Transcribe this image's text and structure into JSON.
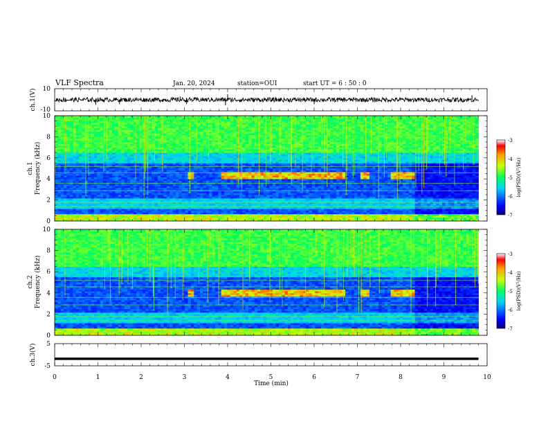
{
  "header": {
    "title": "VLF Spectra",
    "date": "Jan. 20, 2024",
    "station": "station=OUI",
    "start": "start UT =  6 : 50 : 0"
  },
  "chart_data": [
    {
      "type": "line",
      "panel": "waveform-ch1",
      "ylabel": "ch.1(V)",
      "ylim": [
        -10,
        10
      ],
      "yticks": [
        "10",
        "-10"
      ],
      "xlim": [
        0,
        10
      ],
      "data_end_min": 9.8,
      "baseline": 0,
      "typical_amplitude": 2,
      "spikes": [
        {
          "t": 0.95,
          "v": -4.5
        },
        {
          "t": 1.5,
          "v": -4
        },
        {
          "t": 2.9,
          "v": 3
        },
        {
          "t": 3.05,
          "v": -4
        },
        {
          "t": 3.95,
          "v": -5
        },
        {
          "t": 4.0,
          "v": 5
        },
        {
          "t": 6.0,
          "v": -4
        },
        {
          "t": 9.65,
          "v": 4
        }
      ]
    },
    {
      "type": "heatmap",
      "panel": "spectrogram-ch1",
      "ylabel": "ch.1\nFrequency  (kHz)",
      "ylim": [
        0,
        10
      ],
      "yticks": [
        "0",
        "2",
        "4",
        "6",
        "8",
        "10"
      ],
      "xlim": [
        0,
        10
      ],
      "data_end_min": 9.8,
      "colorbar": {
        "label": "log(PSD)(V²/Hz)",
        "range": [
          -7,
          -3
        ],
        "ticks": [
          "-3",
          "-4",
          "-5",
          "-6",
          "-7"
        ]
      },
      "emission_bands": [
        {
          "t_start": 3.85,
          "t_end": 6.7,
          "f_khz": 4.3
        },
        {
          "t_start": 3.1,
          "t_end": 3.25,
          "f_khz": 4.3
        },
        {
          "t_start": 7.05,
          "t_end": 7.3,
          "f_khz": 4.3
        },
        {
          "t_start": 7.8,
          "t_end": 8.3,
          "f_khz": 4.3
        }
      ]
    },
    {
      "type": "heatmap",
      "panel": "spectrogram-ch2",
      "ylabel": "ch.2\nFrequency  (kHz)",
      "ylim": [
        0,
        10
      ],
      "yticks": [
        "0",
        "2",
        "4",
        "6",
        "8",
        "10"
      ],
      "xlim": [
        0,
        10
      ],
      "data_end_min": 9.8,
      "colorbar": {
        "label": "log(PSD)(V²/Hz)",
        "range": [
          -7,
          -3
        ],
        "ticks": [
          "-3",
          "-4",
          "-5",
          "-6",
          "-7"
        ]
      },
      "emission_bands": [
        {
          "t_start": 3.85,
          "t_end": 6.7,
          "f_khz": 4.0
        },
        {
          "t_start": 3.1,
          "t_end": 3.25,
          "f_khz": 4.0
        },
        {
          "t_start": 7.05,
          "t_end": 7.3,
          "f_khz": 4.0
        },
        {
          "t_start": 7.8,
          "t_end": 8.3,
          "f_khz": 4.0
        }
      ]
    },
    {
      "type": "line",
      "panel": "waveform-ch3",
      "ylabel": "ch.3(V)",
      "ylim": [
        -5,
        5
      ],
      "yticks": [
        "5",
        "-5"
      ],
      "xlim": [
        0,
        10
      ],
      "data_end_min": 9.8,
      "baseline": -1.6,
      "typical_amplitude": 0.3
    }
  ],
  "xaxis": {
    "label": "Time  (min)",
    "ticks": [
      "0",
      "1",
      "2",
      "3",
      "4",
      "5",
      "6",
      "7",
      "8",
      "9",
      "10"
    ]
  }
}
